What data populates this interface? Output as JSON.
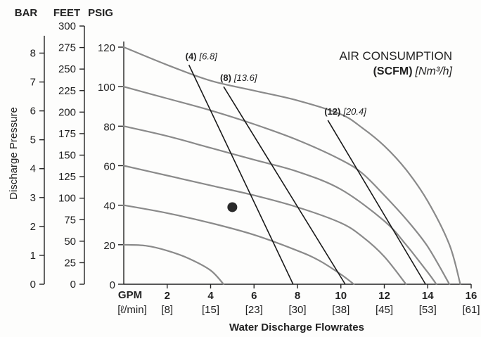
{
  "chart_data": {
    "type": "line",
    "title": "AIR CONSUMPTION",
    "subtitle_bold": "(SCFM)",
    "subtitle_units": "[Nm³/h]",
    "ylabel": "Discharge Pressure",
    "xlabel": "Water Discharge Flowrates",
    "axis_headers": {
      "bar": "BAR",
      "feet": "FEET",
      "psig": "PSIG"
    },
    "x_unit_gpm": "GPM",
    "x_unit_lmin": "[ℓ/min]",
    "xlim": [
      0,
      16
    ],
    "ylim": [
      0,
      120
    ],
    "grid": false,
    "x_ticks_gpm": [
      "2",
      "4",
      "6",
      "8",
      "10",
      "12",
      "14",
      "16"
    ],
    "x_ticks_lmin": [
      "[8]",
      "[15]",
      "[23]",
      "[30]",
      "[38]",
      "[45]",
      "[53]",
      "[61]"
    ],
    "psig_ticks": [
      "0",
      "20",
      "40",
      "60",
      "80",
      "100",
      "120"
    ],
    "bar_ticks": [
      "0",
      "1",
      "2",
      "3",
      "4",
      "5",
      "6",
      "7",
      "8"
    ],
    "feet_ticks": [
      "0",
      "25",
      "50",
      "75",
      "100",
      "125",
      "150",
      "175",
      "200",
      "225",
      "250",
      "275",
      "300"
    ],
    "performance_curves": [
      {
        "points": [
          [
            0,
            120
          ],
          [
            2,
            111
          ],
          [
            4,
            103
          ],
          [
            6,
            98
          ],
          [
            8,
            93
          ],
          [
            10,
            86
          ],
          [
            11,
            79
          ],
          [
            12,
            70
          ],
          [
            13,
            58
          ],
          [
            14,
            42
          ],
          [
            15,
            20
          ],
          [
            15.5,
            0
          ]
        ]
      },
      {
        "points": [
          [
            0,
            100
          ],
          [
            2,
            94
          ],
          [
            4,
            88
          ],
          [
            6,
            81
          ],
          [
            8,
            73
          ],
          [
            10,
            63
          ],
          [
            11,
            56
          ],
          [
            12,
            45
          ],
          [
            13,
            33
          ],
          [
            14,
            19
          ],
          [
            15,
            0
          ]
        ]
      },
      {
        "points": [
          [
            0,
            80
          ],
          [
            2,
            75
          ],
          [
            4,
            69
          ],
          [
            6,
            63
          ],
          [
            8,
            57
          ],
          [
            10,
            48
          ],
          [
            12,
            32
          ],
          [
            13,
            20
          ],
          [
            14,
            6
          ],
          [
            14.4,
            0
          ]
        ]
      },
      {
        "points": [
          [
            0,
            60
          ],
          [
            2,
            55
          ],
          [
            4,
            50
          ],
          [
            6,
            45
          ],
          [
            8,
            39
          ],
          [
            10,
            31
          ],
          [
            11,
            24
          ],
          [
            12,
            14
          ],
          [
            13,
            0
          ]
        ]
      },
      {
        "points": [
          [
            0,
            40
          ],
          [
            2,
            36
          ],
          [
            4,
            31
          ],
          [
            6,
            25
          ],
          [
            8,
            17
          ],
          [
            9,
            12
          ],
          [
            10,
            5
          ],
          [
            10.6,
            0
          ]
        ]
      },
      {
        "points": [
          [
            0,
            20
          ],
          [
            1,
            19.5
          ],
          [
            2,
            17
          ],
          [
            3,
            13
          ],
          [
            4,
            7
          ],
          [
            4.6,
            0
          ]
        ]
      }
    ],
    "air_consumption_lines": [
      {
        "label": "(4)",
        "metric": "[6.8]",
        "points": [
          [
            3.0,
            111
          ],
          [
            7.8,
            0
          ]
        ]
      },
      {
        "label": "(8)",
        "metric": "[13.6]",
        "points": [
          [
            4.6,
            100
          ],
          [
            10.2,
            0
          ]
        ]
      },
      {
        "label": "(12)",
        "metric": "[20.4]",
        "points": [
          [
            9.4,
            83
          ],
          [
            13.9,
            0
          ]
        ]
      }
    ],
    "operating_point": {
      "x": 5.0,
      "y": 39
    },
    "colors": {
      "curve": "#8a8a8a",
      "air_line": "#1a1a1a",
      "axis": "#222222",
      "point": "#2a2a2a"
    }
  }
}
